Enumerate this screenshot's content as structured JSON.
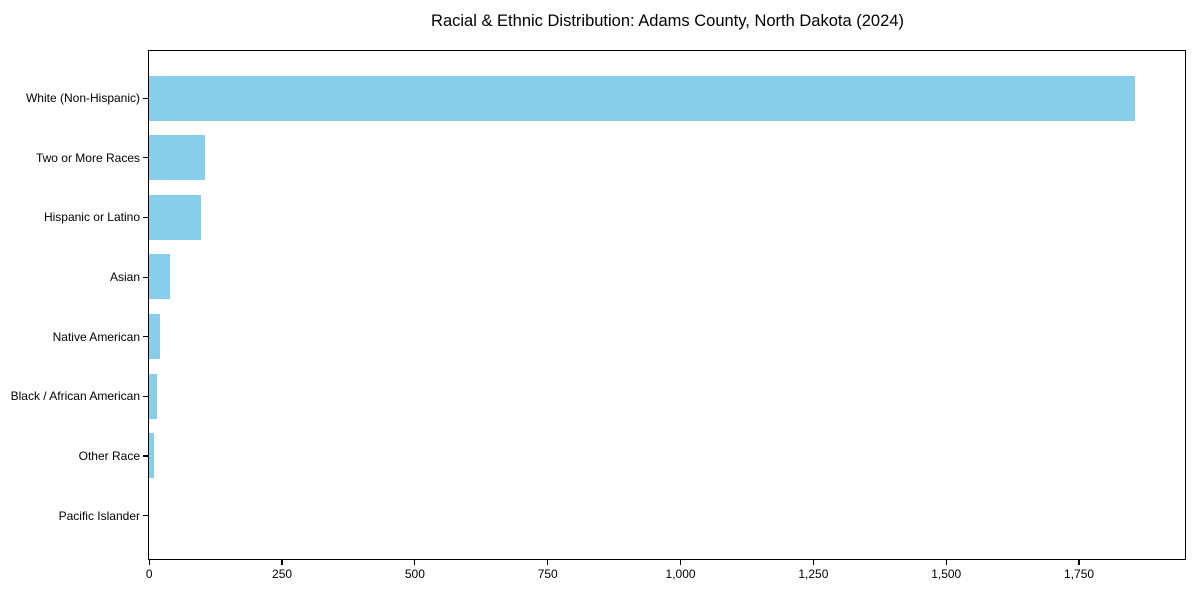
{
  "chart_data": {
    "type": "bar",
    "orientation": "horizontal",
    "title": "Racial & Ethnic Distribution: Adams County, North Dakota (2024)",
    "categories": [
      "White (Non-Hispanic)",
      "Two or More Races",
      "Hispanic or Latino",
      "Asian",
      "Native American",
      "Black / African American",
      "Other Race",
      "Pacific Islander"
    ],
    "values": [
      1856,
      105,
      98,
      40,
      21,
      15,
      9,
      0
    ],
    "xlabel": "",
    "ylabel": "",
    "xlim": [
      0,
      1949
    ],
    "x_ticks": [
      0,
      250,
      500,
      750,
      1000,
      1250,
      1500,
      1750
    ],
    "x_tick_labels": [
      "0",
      "250",
      "500",
      "750",
      "1,000",
      "1,250",
      "1,500",
      "1,750"
    ],
    "bar_color": "#87ceeb",
    "axis_color": "#000000",
    "background_color": "#ffffff",
    "grid": false,
    "legend": null,
    "category_order": "descending, largest at top"
  }
}
